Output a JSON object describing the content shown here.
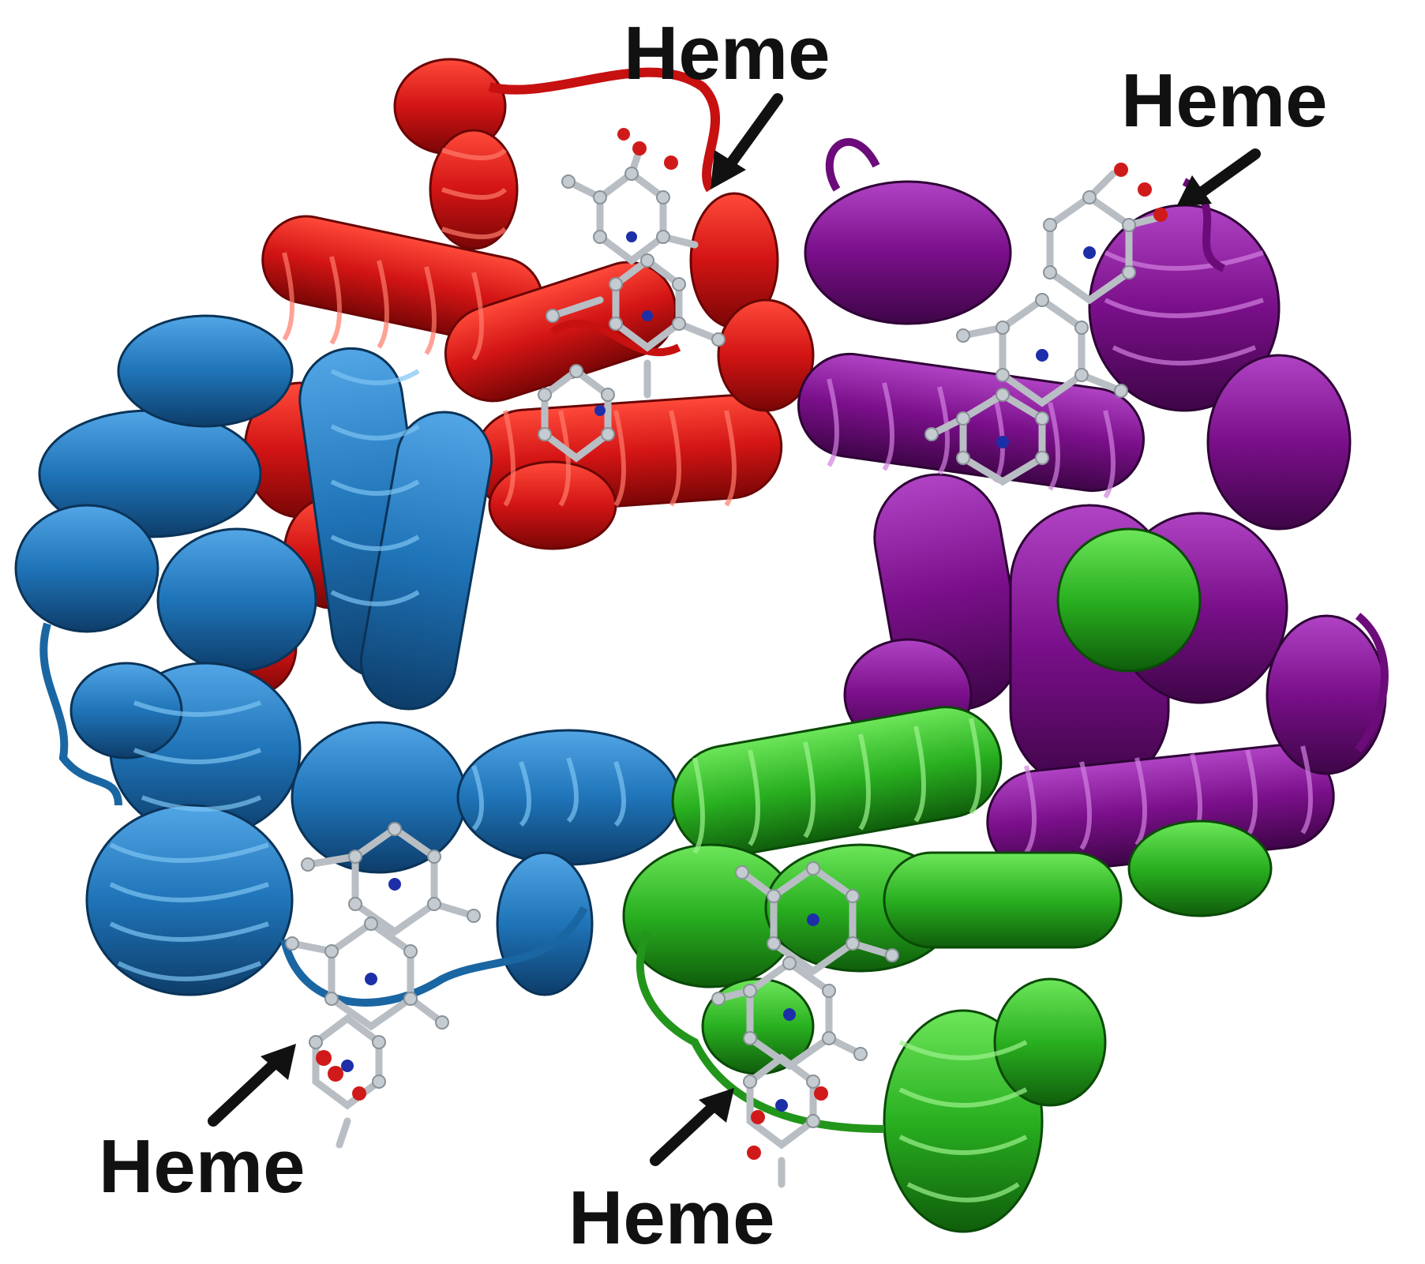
{
  "colors": {
    "background": "#ffffff",
    "chain_red": "#d21414",
    "chain_blue": "#1f74b8",
    "chain_purple": "#7a0f8a",
    "chain_green": "#29b020",
    "heme_carbon": "#b8bec4",
    "heme_nitrogen": "#1d2fa8",
    "heme_oxygen": "#d01a1a",
    "label_text": "#111111"
  },
  "labels": [
    {
      "text": "Heme",
      "chain": "red"
    },
    {
      "text": "Heme",
      "chain": "purple"
    },
    {
      "text": "Heme",
      "chain": "blue"
    },
    {
      "text": "Heme",
      "chain": "green"
    }
  ]
}
